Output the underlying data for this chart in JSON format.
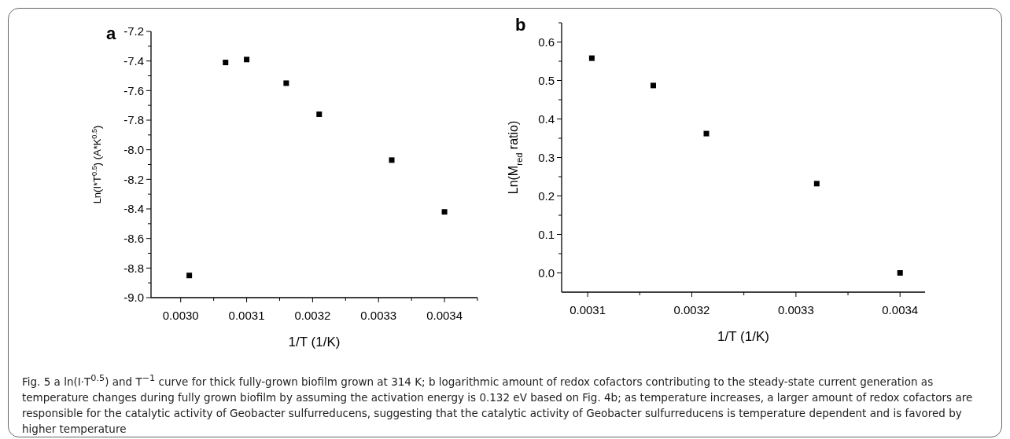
{
  "chart_data": [
    {
      "type": "scatter",
      "title": "a",
      "xlabel": "1/T (1/K)",
      "ylabel": "Ln(I*T$^{0.5}$) (A*K$^{0.5}$)",
      "x": [
        0.003013,
        0.003068,
        0.0031,
        0.00316,
        0.00321,
        0.00332,
        0.0034
      ],
      "series": [
        {
          "color": "#000000",
          "values": [
            -8.85,
            -7.41,
            -7.39,
            -7.55,
            -7.76,
            -8.07,
            -8.42
          ]
        }
      ],
      "marker": "square",
      "grid": false,
      "xlim": [
        0.002955,
        0.00345
      ],
      "xticks": [
        {
          "value": 0.003,
          "label": "0.0030"
        },
        {
          "value": 0.00305,
          "label": null
        },
        {
          "value": 0.0031,
          "label": "0.0031"
        },
        {
          "value": 0.00315,
          "label": null
        },
        {
          "value": 0.0032,
          "label": "0.0032"
        },
        {
          "value": 0.00325,
          "label": null
        },
        {
          "value": 0.0033,
          "label": "0.0033"
        },
        {
          "value": 0.00335,
          "label": null
        },
        {
          "value": 0.0034,
          "label": "0.0034"
        },
        {
          "value": 0.00345,
          "label": null
        }
      ],
      "ylim": [
        -9.0,
        -7.2
      ],
      "yticks": [
        {
          "value": -9.0,
          "label": "-9.0"
        },
        {
          "value": -8.9,
          "label": null
        },
        {
          "value": -8.8,
          "label": "-8.8"
        },
        {
          "value": -8.7,
          "label": null
        },
        {
          "value": -8.6,
          "label": "-8.6"
        },
        {
          "value": -8.5,
          "label": null
        },
        {
          "value": -8.4,
          "label": "-8.4"
        },
        {
          "value": -8.3,
          "label": null
        },
        {
          "value": -8.2,
          "label": "-8.2"
        },
        {
          "value": -8.1,
          "label": null
        },
        {
          "value": -8.0,
          "label": "-8.0"
        },
        {
          "value": -7.9,
          "label": null
        },
        {
          "value": -7.8,
          "label": "-7.8"
        },
        {
          "value": -7.7,
          "label": null
        },
        {
          "value": -7.6,
          "label": "-7.6"
        },
        {
          "value": -7.5,
          "label": null
        },
        {
          "value": -7.4,
          "label": "-7.4"
        },
        {
          "value": -7.3,
          "label": null
        },
        {
          "value": -7.2,
          "label": "-7.2"
        }
      ],
      "annotations": [
        "Fig. 5 a ln(I·T$^{0.5}$) and T$^{−1}$ curve for thick fully-grown biofilm grown at 314 K; b logarithmic amount of redox cofactors contributing to the steady-state current generation as temperature changes during fully grown biofilm by assuming the activation energy is 0.132 eV based on Fig. 4b; as temperature increases, a larger amount of redox cofactors are responsible for the catalytic activity of Geobacter sulfurreducens, suggesting that the catalytic activity of Geobacter sulfurreducens is temperature dependent and is favored by higher temperature"
      ]
    },
    {
      "type": "scatter",
      "title": "b",
      "xlabel": "1/T (1/K)",
      "ylabel": "Ln(M$_{red}$ ratio)",
      "x": [
        0.003104,
        0.003163,
        0.003214,
        0.00332,
        0.0034
      ],
      "series": [
        {
          "color": "#000000",
          "values": [
            0.558,
            0.487,
            0.362,
            0.232,
            0.0
          ]
        }
      ],
      "marker": "square",
      "grid": false,
      "xlim": [
        0.003075,
        0.003424
      ],
      "xticks": [
        {
          "value": 0.0031,
          "label": "0.0031"
        },
        {
          "value": 0.00315,
          "label": null
        },
        {
          "value": 0.0032,
          "label": "0.0032"
        },
        {
          "value": 0.00325,
          "label": null
        },
        {
          "value": 0.0033,
          "label": "0.0033"
        },
        {
          "value": 0.00335,
          "label": null
        },
        {
          "value": 0.0034,
          "label": "0.0034"
        }
      ],
      "ylim": [
        -0.05,
        0.65
      ],
      "yticks": [
        {
          "value": 0.0,
          "label": "0.0"
        },
        {
          "value": 0.05,
          "label": null
        },
        {
          "value": 0.1,
          "label": "0.1"
        },
        {
          "value": 0.15,
          "label": null
        },
        {
          "value": 0.2,
          "label": "0.2"
        },
        {
          "value": 0.25,
          "label": null
        },
        {
          "value": 0.3,
          "label": "0.3"
        },
        {
          "value": 0.35,
          "label": null
        },
        {
          "value": 0.4,
          "label": "0.4"
        },
        {
          "value": 0.45,
          "label": null
        },
        {
          "value": 0.5,
          "label": "0.5"
        },
        {
          "value": 0.55,
          "label": null
        },
        {
          "value": 0.6,
          "label": "0.6"
        },
        {
          "value": 0.65,
          "label": null
        }
      ]
    }
  ]
}
